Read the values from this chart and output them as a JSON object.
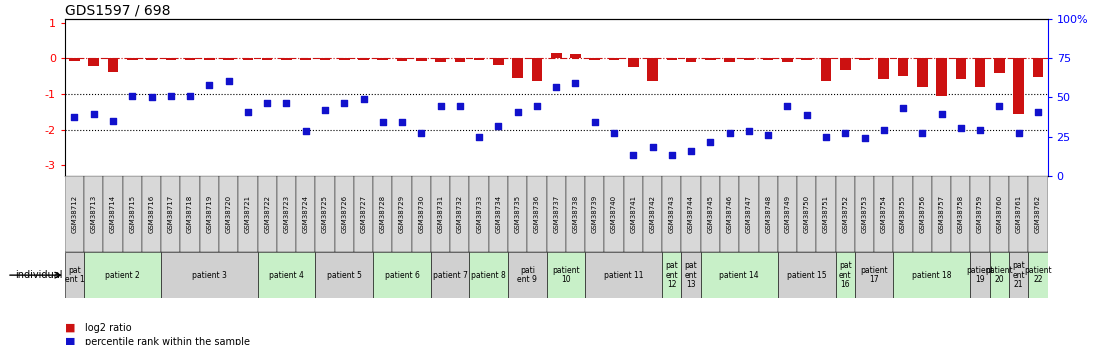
{
  "title": "GDS1597 / 698",
  "gsm_labels": [
    "GSM38712",
    "GSM38713",
    "GSM38714",
    "GSM38715",
    "GSM38716",
    "GSM38717",
    "GSM38718",
    "GSM38719",
    "GSM38720",
    "GSM38721",
    "GSM38722",
    "GSM38723",
    "GSM38724",
    "GSM38725",
    "GSM38726",
    "GSM38727",
    "GSM38728",
    "GSM38729",
    "GSM38730",
    "GSM38731",
    "GSM38732",
    "GSM38733",
    "GSM38734",
    "GSM38735",
    "GSM38736",
    "GSM38737",
    "GSM38738",
    "GSM38739",
    "GSM38740",
    "GSM38741",
    "GSM38742",
    "GSM38743",
    "GSM38744",
    "GSM38745",
    "GSM38746",
    "GSM38747",
    "GSM38748",
    "GSM38749",
    "GSM38750",
    "GSM38751",
    "GSM38752",
    "GSM38753",
    "GSM38754",
    "GSM38755",
    "GSM38756",
    "GSM38757",
    "GSM38758",
    "GSM38759",
    "GSM38760",
    "GSM38761",
    "GSM38762"
  ],
  "log2_ratio": [
    -0.08,
    -0.22,
    -0.38,
    -0.05,
    -0.05,
    -0.05,
    -0.05,
    -0.05,
    -0.05,
    -0.05,
    -0.05,
    -0.05,
    -0.05,
    -0.05,
    -0.05,
    -0.05,
    -0.05,
    -0.08,
    -0.08,
    -0.1,
    -0.12,
    -0.05,
    -0.18,
    -0.55,
    -0.65,
    0.15,
    0.12,
    -0.05,
    -0.05,
    -0.25,
    -0.65,
    -0.05,
    -0.12,
    -0.05,
    -0.12,
    -0.05,
    -0.05,
    -0.12,
    -0.05,
    -0.65,
    -0.32,
    -0.05,
    -0.58,
    -0.5,
    -0.8,
    -1.05,
    -0.58,
    -0.8,
    -0.42,
    -1.55,
    -0.52
  ],
  "percentile_rank": [
    -1.65,
    -1.55,
    -1.75,
    -1.05,
    -1.1,
    -1.05,
    -1.05,
    -0.75,
    -0.65,
    -1.5,
    -1.25,
    -1.25,
    -2.05,
    -1.45,
    -1.25,
    -1.15,
    -1.8,
    -1.8,
    -2.1,
    -1.35,
    -1.35,
    -2.2,
    -1.9,
    -1.5,
    -1.35,
    -0.8,
    -0.7,
    -1.8,
    -2.1,
    -2.7,
    -2.5,
    -2.7,
    -2.6,
    -2.35,
    -2.1,
    -2.05,
    -2.15,
    -1.35,
    -1.6,
    -2.2,
    -2.1,
    -2.25,
    -2.0,
    -1.4,
    -2.1,
    -1.55,
    -1.95,
    -2.0,
    -1.35,
    -2.1,
    -1.5
  ],
  "patients": [
    {
      "label": "pat\nent 1",
      "start": 0,
      "end": 1,
      "color": "#d0d0d0"
    },
    {
      "label": "patient 2",
      "start": 1,
      "end": 5,
      "color": "#c8f0c8"
    },
    {
      "label": "patient 3",
      "start": 5,
      "end": 10,
      "color": "#d0d0d0"
    },
    {
      "label": "patient 4",
      "start": 10,
      "end": 13,
      "color": "#c8f0c8"
    },
    {
      "label": "patient 5",
      "start": 13,
      "end": 16,
      "color": "#d0d0d0"
    },
    {
      "label": "patient 6",
      "start": 16,
      "end": 19,
      "color": "#c8f0c8"
    },
    {
      "label": "patient 7",
      "start": 19,
      "end": 21,
      "color": "#d0d0d0"
    },
    {
      "label": "patient 8",
      "start": 21,
      "end": 23,
      "color": "#c8f0c8"
    },
    {
      "label": "pati\nent 9",
      "start": 23,
      "end": 25,
      "color": "#d0d0d0"
    },
    {
      "label": "patient\n10",
      "start": 25,
      "end": 27,
      "color": "#c8f0c8"
    },
    {
      "label": "patient 11",
      "start": 27,
      "end": 31,
      "color": "#d0d0d0"
    },
    {
      "label": "pat\nent\n12",
      "start": 31,
      "end": 32,
      "color": "#c8f0c8"
    },
    {
      "label": "pat\nent\n13",
      "start": 32,
      "end": 33,
      "color": "#d0d0d0"
    },
    {
      "label": "patient 14",
      "start": 33,
      "end": 37,
      "color": "#c8f0c8"
    },
    {
      "label": "patient 15",
      "start": 37,
      "end": 40,
      "color": "#d0d0d0"
    },
    {
      "label": "pat\nent\n16",
      "start": 40,
      "end": 41,
      "color": "#c8f0c8"
    },
    {
      "label": "patient\n17",
      "start": 41,
      "end": 43,
      "color": "#d0d0d0"
    },
    {
      "label": "patient 18",
      "start": 43,
      "end": 47,
      "color": "#c8f0c8"
    },
    {
      "label": "patient\n19",
      "start": 47,
      "end": 48,
      "color": "#d0d0d0"
    },
    {
      "label": "patient\n20",
      "start": 48,
      "end": 49,
      "color": "#c8f0c8"
    },
    {
      "label": "pat\nent\n21",
      "start": 49,
      "end": 50,
      "color": "#d0d0d0"
    },
    {
      "label": "patient\n22",
      "start": 50,
      "end": 51,
      "color": "#c8f0c8"
    }
  ],
  "ylim_left": [
    -3.3,
    1.1
  ],
  "ylim_right": [
    0,
    100
  ],
  "yticks_left": [
    1,
    0,
    -1,
    -2,
    -3
  ],
  "yticks_right": [
    0,
    25,
    50,
    75,
    100
  ],
  "bar_color": "#cc1111",
  "dot_color": "#1111cc",
  "bar_width": 0.55,
  "dot_size": 18,
  "bg_color": "#ffffff",
  "gsm_box_color": "#d8d8d8",
  "individual_label": "individual",
  "legend_items": [
    "log2 ratio",
    "percentile rank within the sample"
  ]
}
